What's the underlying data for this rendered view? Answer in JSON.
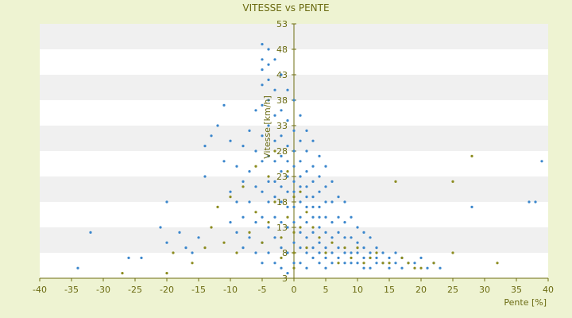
{
  "chart_data": {
    "type": "scatter",
    "title": "VITESSE vs PENTE",
    "xlabel": "Pente [%]",
    "ylabel": "Vitesse [km/h]",
    "xlim": [
      -40,
      40
    ],
    "ylim": [
      3,
      53
    ],
    "x_ticks": [
      -40,
      -35,
      -30,
      -25,
      -20,
      -15,
      -10,
      -5,
      0,
      5,
      10,
      15,
      20,
      25,
      30,
      35,
      40
    ],
    "y_ticks": [
      3,
      8,
      13,
      18,
      23,
      28,
      33,
      38,
      43,
      48,
      53
    ],
    "grid": "horizontal bands",
    "legend": "none",
    "colors": {
      "background": "#eef3d2",
      "plot_band_light": "#ffffff",
      "plot_band_dark": "#f0f0f0",
      "axis": "#6e6e12",
      "text": "#6b6b12",
      "series_blue": "#3a86cc",
      "series_olive": "#8b8b1e"
    },
    "series": [
      {
        "points": [
          [
            -34,
            5
          ],
          [
            -32,
            12
          ],
          [
            -26,
            7
          ],
          [
            -24,
            7
          ],
          [
            -21,
            13
          ],
          [
            -20,
            18
          ],
          [
            -20,
            10
          ],
          [
            -18,
            12
          ],
          [
            -17,
            9
          ],
          [
            -16,
            8
          ],
          [
            -15,
            11
          ],
          [
            -14,
            23
          ],
          [
            -14,
            29
          ],
          [
            -13,
            31
          ],
          [
            -12,
            33
          ],
          [
            -11,
            37
          ],
          [
            -11,
            26
          ],
          [
            -10,
            30
          ],
          [
            -10,
            20
          ],
          [
            -10,
            14
          ],
          [
            -9,
            25
          ],
          [
            -9,
            18
          ],
          [
            -9,
            12
          ],
          [
            -8,
            29
          ],
          [
            -8,
            22
          ],
          [
            -8,
            15
          ],
          [
            -8,
            9
          ],
          [
            -7,
            32
          ],
          [
            -7,
            24
          ],
          [
            -7,
            18
          ],
          [
            -7,
            11
          ],
          [
            -6,
            36
          ],
          [
            -6,
            28
          ],
          [
            -6,
            21
          ],
          [
            -6,
            14
          ],
          [
            -6,
            8
          ],
          [
            -5,
            49
          ],
          [
            -5,
            46
          ],
          [
            -5,
            44
          ],
          [
            -5,
            41
          ],
          [
            -5,
            37
          ],
          [
            -5,
            31
          ],
          [
            -5,
            26
          ],
          [
            -5,
            20
          ],
          [
            -5,
            15
          ],
          [
            -5,
            10
          ],
          [
            -5,
            6
          ],
          [
            -4,
            48
          ],
          [
            -4,
            45
          ],
          [
            -4,
            42
          ],
          [
            -4,
            38
          ],
          [
            -4,
            33
          ],
          [
            -4,
            27
          ],
          [
            -4,
            22
          ],
          [
            -4,
            18
          ],
          [
            -4,
            13
          ],
          [
            -4,
            8
          ],
          [
            -3,
            46
          ],
          [
            -3,
            40
          ],
          [
            -3,
            35
          ],
          [
            -3,
            30
          ],
          [
            -3,
            26
          ],
          [
            -3,
            22
          ],
          [
            -3,
            19
          ],
          [
            -3,
            15
          ],
          [
            -3,
            11
          ],
          [
            -3,
            6
          ],
          [
            -2,
            43
          ],
          [
            -2,
            36
          ],
          [
            -2,
            31
          ],
          [
            -2,
            27
          ],
          [
            -2,
            24
          ],
          [
            -2,
            21
          ],
          [
            -2,
            18
          ],
          [
            -2,
            14
          ],
          [
            -2,
            9
          ],
          [
            -2,
            5
          ],
          [
            -1,
            40
          ],
          [
            -1,
            34
          ],
          [
            -1,
            29
          ],
          [
            -1,
            26
          ],
          [
            -1,
            23
          ],
          [
            -1,
            20
          ],
          [
            -1,
            17
          ],
          [
            -1,
            13
          ],
          [
            -1,
            8
          ],
          [
            -1,
            4
          ],
          [
            0,
            38
          ],
          [
            0,
            32
          ],
          [
            0,
            28
          ],
          [
            0,
            25
          ],
          [
            0,
            22
          ],
          [
            0,
            20
          ],
          [
            0,
            17
          ],
          [
            0,
            14
          ],
          [
            0,
            10
          ],
          [
            0,
            6
          ],
          [
            1,
            35
          ],
          [
            1,
            30
          ],
          [
            1,
            26
          ],
          [
            1,
            23
          ],
          [
            1,
            21
          ],
          [
            1,
            18
          ],
          [
            1,
            15
          ],
          [
            1,
            12
          ],
          [
            1,
            9
          ],
          [
            1,
            6
          ],
          [
            2,
            32
          ],
          [
            2,
            28
          ],
          [
            2,
            24
          ],
          [
            2,
            21
          ],
          [
            2,
            19
          ],
          [
            2,
            17
          ],
          [
            2,
            14
          ],
          [
            2,
            11
          ],
          [
            2,
            8
          ],
          [
            2,
            5
          ],
          [
            3,
            30
          ],
          [
            3,
            25
          ],
          [
            3,
            22
          ],
          [
            3,
            19
          ],
          [
            3,
            17
          ],
          [
            3,
            15
          ],
          [
            3,
            12
          ],
          [
            3,
            9
          ],
          [
            3,
            7
          ],
          [
            4,
            27
          ],
          [
            4,
            23
          ],
          [
            4,
            20
          ],
          [
            4,
            17
          ],
          [
            4,
            15
          ],
          [
            4,
            13
          ],
          [
            4,
            10
          ],
          [
            4,
            8
          ],
          [
            4,
            6
          ],
          [
            5,
            25
          ],
          [
            5,
            21
          ],
          [
            5,
            18
          ],
          [
            5,
            15
          ],
          [
            5,
            12
          ],
          [
            5,
            9
          ],
          [
            5,
            7
          ],
          [
            5,
            5
          ],
          [
            6,
            22
          ],
          [
            6,
            18
          ],
          [
            6,
            14
          ],
          [
            6,
            11
          ],
          [
            6,
            8
          ],
          [
            6,
            6
          ],
          [
            7,
            19
          ],
          [
            7,
            15
          ],
          [
            7,
            12
          ],
          [
            7,
            9
          ],
          [
            7,
            7
          ],
          [
            8,
            18
          ],
          [
            8,
            14
          ],
          [
            8,
            11
          ],
          [
            8,
            8
          ],
          [
            8,
            6
          ],
          [
            9,
            15
          ],
          [
            9,
            11
          ],
          [
            9,
            8
          ],
          [
            9,
            6
          ],
          [
            10,
            13
          ],
          [
            10,
            10
          ],
          [
            10,
            8
          ],
          [
            10,
            6
          ],
          [
            11,
            12
          ],
          [
            11,
            9
          ],
          [
            11,
            7
          ],
          [
            11,
            5
          ],
          [
            12,
            11
          ],
          [
            12,
            8
          ],
          [
            12,
            7
          ],
          [
            12,
            5
          ],
          [
            13,
            9
          ],
          [
            13,
            7
          ],
          [
            13,
            6
          ],
          [
            14,
            8
          ],
          [
            14,
            6
          ],
          [
            15,
            7
          ],
          [
            15,
            5
          ],
          [
            16,
            8
          ],
          [
            16,
            6
          ],
          [
            17,
            7
          ],
          [
            17,
            5
          ],
          [
            18,
            6
          ],
          [
            19,
            6
          ],
          [
            20,
            7
          ],
          [
            21,
            5
          ],
          [
            22,
            6
          ],
          [
            23,
            5
          ],
          [
            28,
            17
          ],
          [
            37,
            18
          ],
          [
            38,
            18
          ],
          [
            39,
            26
          ]
        ]
      },
      {
        "points": [
          [
            -27,
            4
          ],
          [
            -20,
            4
          ],
          [
            -19,
            8
          ],
          [
            -16,
            6
          ],
          [
            -14,
            9
          ],
          [
            -13,
            13
          ],
          [
            -12,
            17
          ],
          [
            -11,
            10
          ],
          [
            -10,
            19
          ],
          [
            -9,
            8
          ],
          [
            -8,
            21
          ],
          [
            -7,
            12
          ],
          [
            -6,
            25
          ],
          [
            -6,
            16
          ],
          [
            -5,
            10
          ],
          [
            -4,
            23
          ],
          [
            -4,
            14
          ],
          [
            -3,
            28
          ],
          [
            -3,
            18
          ],
          [
            -2,
            11
          ],
          [
            -2,
            7
          ],
          [
            -1,
            24
          ],
          [
            -1,
            15
          ],
          [
            0,
            19
          ],
          [
            0,
            12
          ],
          [
            0,
            8
          ],
          [
            0,
            5
          ],
          [
            1,
            20
          ],
          [
            1,
            13
          ],
          [
            2,
            16
          ],
          [
            2,
            9
          ],
          [
            3,
            13
          ],
          [
            4,
            11
          ],
          [
            5,
            8
          ],
          [
            6,
            10
          ],
          [
            7,
            6
          ],
          [
            8,
            9
          ],
          [
            9,
            7
          ],
          [
            10,
            9
          ],
          [
            11,
            6
          ],
          [
            12,
            7
          ],
          [
            13,
            8
          ],
          [
            14,
            6
          ],
          [
            15,
            6
          ],
          [
            16,
            22
          ],
          [
            17,
            7
          ],
          [
            18,
            6
          ],
          [
            19,
            5
          ],
          [
            20,
            5
          ],
          [
            22,
            6
          ],
          [
            25,
            8
          ],
          [
            25,
            22
          ],
          [
            28,
            27
          ],
          [
            32,
            6
          ]
        ]
      }
    ]
  }
}
